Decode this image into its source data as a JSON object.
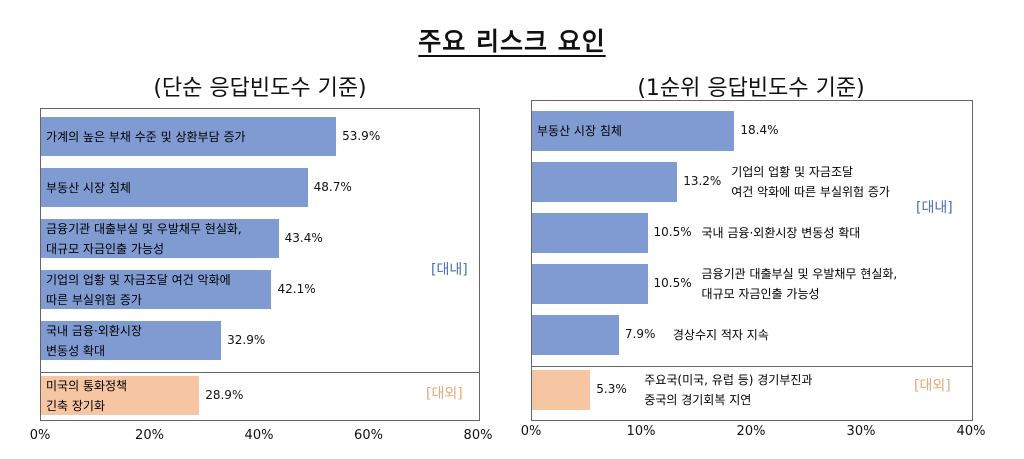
{
  "title": "주요 리스크 요인",
  "chart_data": [
    {
      "type": "bar",
      "orientation": "horizontal",
      "subtitle": "(단순 응답빈도수 기준)",
      "categories": [
        [
          "가계의 높은 부채 수준 및 상환부담 증가"
        ],
        [
          "부동산 시장 침체"
        ],
        [
          "금융기관 대출부실 및 우발채무 현실화,",
          "대규모 자금인출 가능성"
        ],
        [
          "기업의 업황 및 자금조달 여건 악화에",
          "따른 부실위험 증가"
        ],
        [
          "국내 금융·외환시장",
          " 변동성 확대"
        ],
        [
          "미국의 통화정책",
          "긴축 장기화"
        ]
      ],
      "values": [
        53.9,
        48.7,
        43.4,
        42.1,
        32.9,
        28.9
      ],
      "value_labels": [
        "53.9%",
        "48.7%",
        "43.4%",
        "42.1%",
        "32.9%",
        "28.9%"
      ],
      "groups": [
        "dom",
        "dom",
        "dom",
        "dom",
        "dom",
        "ext"
      ],
      "group_labels": {
        "dom": "[대내]",
        "ext": "[대외]"
      },
      "xlim": [
        0,
        80
      ],
      "ticks": [
        0,
        20,
        40,
        60,
        80
      ],
      "tick_labels": [
        "0%",
        "20%",
        "40%",
        "60%",
        "80%"
      ],
      "colors": {
        "dom": "#7f9bd2",
        "ext": "#f6c5a1"
      },
      "label_position": "inside-bar"
    },
    {
      "type": "bar",
      "orientation": "horizontal",
      "subtitle": "(1순위 응답빈도수 기준)",
      "categories": [
        [
          "부동산 시장 침체"
        ],
        [
          "기업의 업황 및 자금조달",
          "여건 악화에 따른 부실위험 증가"
        ],
        [
          "국내 금융·외환시장 변동성 확대"
        ],
        [
          "금융기관 대출부실 및 우발채무 현실화,",
          "대규모 자금인출 가능성"
        ],
        [
          "경상수지 적자 지속"
        ],
        [
          "주요국(미국, 유럽 등) 경기부진과",
          "중국의 경기회복 지연"
        ]
      ],
      "values": [
        18.4,
        13.2,
        10.5,
        10.5,
        7.9,
        5.3
      ],
      "value_labels": [
        "18.4%",
        "13.2%",
        "10.5%",
        "10.5%",
        "7.9%",
        "5.3%"
      ],
      "groups": [
        "dom",
        "dom",
        "dom",
        "dom",
        "dom",
        "ext"
      ],
      "group_labels": {
        "dom": "[대내]",
        "ext": "[대외]"
      },
      "xlim": [
        0,
        40
      ],
      "ticks": [
        0,
        10,
        20,
        30,
        40
      ],
      "tick_labels": [
        "0%",
        "10%",
        "20%",
        "30%",
        "40%"
      ],
      "colors": {
        "dom": "#7f9bd2",
        "ext": "#f6c5a1"
      },
      "label_position": "after-value"
    }
  ]
}
